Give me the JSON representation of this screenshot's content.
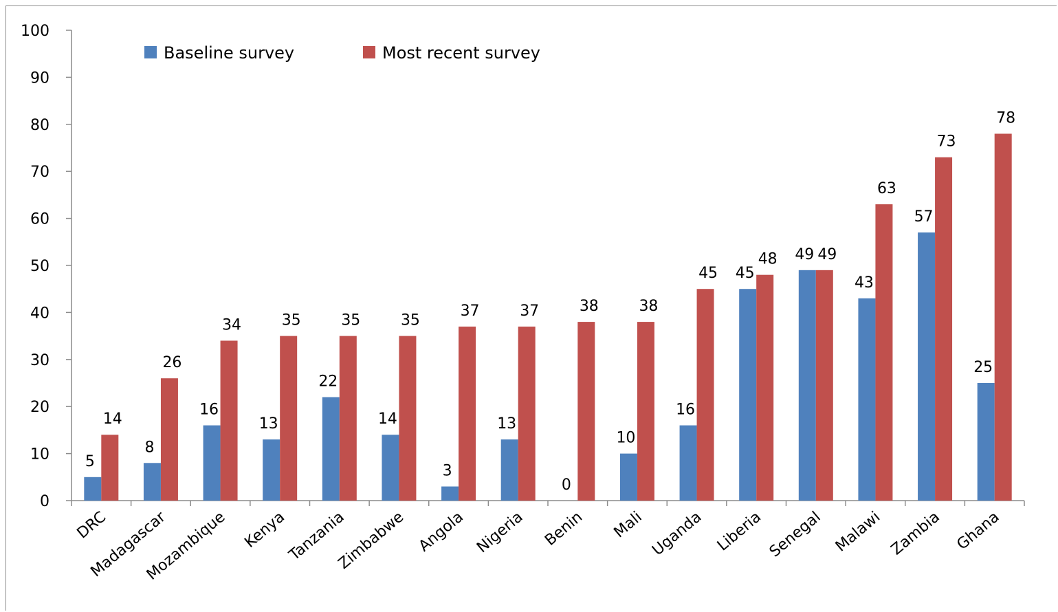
{
  "chart_data": {
    "type": "bar",
    "categories": [
      "DRC",
      "Madagascar",
      "Mozambique",
      "Kenya",
      "Tanzania",
      "Zimbabwe",
      "Angola",
      "Nigeria",
      "Benin",
      "Mali",
      "Uganda",
      "Liberia",
      "Senegal",
      "Malawi",
      "Zambia",
      "Ghana"
    ],
    "series": [
      {
        "name": "Baseline survey",
        "color": "#4f81bd",
        "values": [
          5,
          8,
          16,
          13,
          22,
          14,
          3,
          13,
          0,
          10,
          16,
          45,
          49,
          43,
          57,
          25
        ]
      },
      {
        "name": "Most recent survey",
        "color": "#c0504d",
        "values": [
          14,
          26,
          34,
          35,
          35,
          35,
          37,
          37,
          38,
          38,
          45,
          48,
          49,
          63,
          73,
          78
        ]
      }
    ],
    "title": "",
    "xlabel": "",
    "ylabel": "",
    "ylim": [
      0,
      100
    ],
    "yticks": [
      0,
      10,
      20,
      30,
      40,
      50,
      60,
      70,
      80,
      90,
      100
    ],
    "grid": false,
    "legend_position": "top-left",
    "data_labels": true
  }
}
